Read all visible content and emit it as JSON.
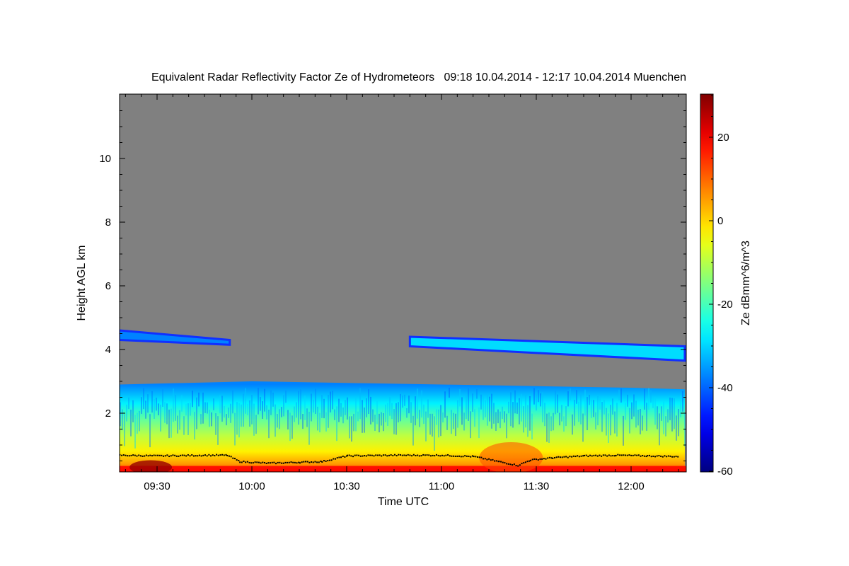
{
  "chart_data": {
    "type": "heatmap",
    "title": "Equivalent Radar Reflectivity Factor Ze of Hydrometeors   09:18 10.04.2014 - 12:17 10.04.2014 Muenchen",
    "xlabel": "Time UTC",
    "ylabel": "Height AGL km",
    "colorbar_label": "Ze dBmm^6/m^3",
    "xlim": [
      "09:18",
      "12:17"
    ],
    "ylim": [
      0.16,
      12
    ],
    "clim": [
      -61,
      30
    ],
    "xticks": [
      "09:30",
      "10:00",
      "10:30",
      "11:00",
      "11:30",
      "12:00"
    ],
    "yticks": [
      2,
      4,
      6,
      8,
      10
    ],
    "colorbar_ticks": [
      20,
      0,
      -20,
      -40,
      -60
    ],
    "background_color": "#808080",
    "layers": [
      {
        "name": "low-precip-layer",
        "start": "09:18",
        "end": "12:17",
        "base_km": 0.16,
        "top_km": [
          [
            "09:18",
            2.9
          ],
          [
            "10:00",
            3.0
          ],
          [
            "10:30",
            2.95
          ],
          [
            "11:00",
            2.9
          ],
          [
            "11:30",
            2.85
          ],
          [
            "12:00",
            2.8
          ],
          [
            "12:17",
            2.75
          ]
        ],
        "profile_dbz": [
          [
            0.2,
            15
          ],
          [
            0.4,
            5
          ],
          [
            0.8,
            -3
          ],
          [
            1.3,
            -10
          ],
          [
            1.8,
            -18
          ],
          [
            2.3,
            -28
          ],
          [
            2.9,
            -38
          ]
        ]
      },
      {
        "name": "upper-cloud-1",
        "start": "09:18",
        "end": "09:53",
        "base_km": [
          4.3,
          4.15
        ],
        "top_km": [
          4.6,
          4.3
        ],
        "ze_dbz": -38
      },
      {
        "name": "upper-cloud-2",
        "start": "10:50",
        "end": "12:17",
        "base_km": [
          4.1,
          3.65
        ],
        "top_km": [
          4.4,
          4.1
        ],
        "ze_dbz": -30
      }
    ],
    "cloud_base_km": [
      [
        "09:18",
        0.7
      ],
      [
        "09:30",
        0.68
      ],
      [
        "09:45",
        0.7
      ],
      [
        "09:52",
        0.7
      ],
      [
        "09:56",
        0.5
      ],
      [
        "10:05",
        0.45
      ],
      [
        "10:15",
        0.48
      ],
      [
        "10:22",
        0.5
      ],
      [
        "10:30",
        0.68
      ],
      [
        "10:45",
        0.7
      ],
      [
        "11:00",
        0.7
      ],
      [
        "11:10",
        0.66
      ],
      [
        "11:18",
        0.5
      ],
      [
        "11:24",
        0.38
      ],
      [
        "11:28",
        0.55
      ],
      [
        "11:35",
        0.62
      ],
      [
        "11:45",
        0.68
      ],
      [
        "11:55",
        0.7
      ],
      [
        "12:05",
        0.68
      ],
      [
        "12:15",
        0.66
      ]
    ]
  }
}
